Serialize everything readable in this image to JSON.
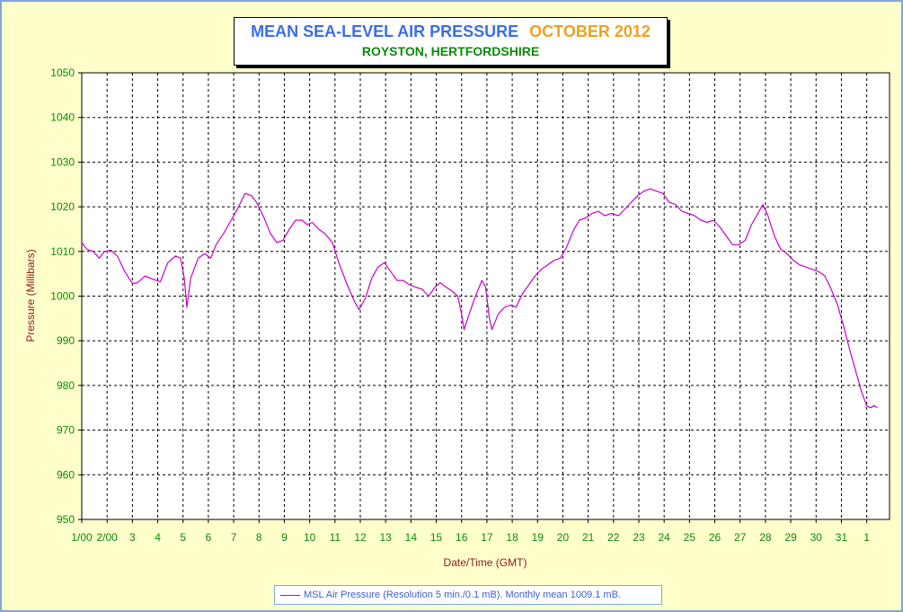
{
  "title": {
    "main": "MEAN SEA-LEVEL AIR PRESSURE",
    "date": "OCTOBER 2012",
    "location": "ROYSTON, HERTFORDSHIRE"
  },
  "legend": {
    "text": "MSL Air Pressure (Resolution 5 min./0.1 mB). Monthly mean 1009.1 mB."
  },
  "colors": {
    "background": "#ffffcc",
    "plot_background": "#ffffff",
    "line": "#cc00cc",
    "tick_labels": "#0a8a0a",
    "axis_titles": "#8b1a1a",
    "title_main": "#3a6ee8",
    "title_date": "#f0a020"
  },
  "chart_data": {
    "type": "line",
    "xlabel": "Date/Time (GMT)",
    "ylabel": "Pressure (Millibars)",
    "ylim": [
      950,
      1050
    ],
    "yticks": [
      950,
      960,
      970,
      980,
      990,
      1000,
      1010,
      1020,
      1030,
      1040,
      1050
    ],
    "xlim_days": [
      1,
      32.9
    ],
    "xticks": [
      {
        "day": 1,
        "label": "1/00"
      },
      {
        "day": 2,
        "label": "2/00"
      },
      {
        "day": 3,
        "label": "3"
      },
      {
        "day": 4,
        "label": "4"
      },
      {
        "day": 5,
        "label": "5"
      },
      {
        "day": 6,
        "label": "6"
      },
      {
        "day": 7,
        "label": "7"
      },
      {
        "day": 8,
        "label": "8"
      },
      {
        "day": 9,
        "label": "9"
      },
      {
        "day": 10,
        "label": "10"
      },
      {
        "day": 11,
        "label": "11"
      },
      {
        "day": 12,
        "label": "12"
      },
      {
        "day": 13,
        "label": "13"
      },
      {
        "day": 14,
        "label": "14"
      },
      {
        "day": 15,
        "label": "15"
      },
      {
        "day": 16,
        "label": "16"
      },
      {
        "day": 17,
        "label": "17"
      },
      {
        "day": 18,
        "label": "18"
      },
      {
        "day": 19,
        "label": "19"
      },
      {
        "day": 20,
        "label": "20"
      },
      {
        "day": 21,
        "label": "21"
      },
      {
        "day": 22,
        "label": "22"
      },
      {
        "day": 23,
        "label": "23"
      },
      {
        "day": 24,
        "label": "24"
      },
      {
        "day": 25,
        "label": "25"
      },
      {
        "day": 26,
        "label": "26"
      },
      {
        "day": 27,
        "label": "27"
      },
      {
        "day": 28,
        "label": "28"
      },
      {
        "day": 29,
        "label": "29"
      },
      {
        "day": 30,
        "label": "30"
      },
      {
        "day": 31,
        "label": "31"
      },
      {
        "day": 32,
        "label": "1"
      }
    ],
    "grid": true,
    "legend_position": "bottom",
    "series": [
      {
        "name": "MSL Air Pressure (Resolution 5 min./0.1 mB). Monthly mean 1009.1 mB.",
        "points": [
          [
            1.0,
            1012
          ],
          [
            1.2,
            1010.5
          ],
          [
            1.45,
            1010
          ],
          [
            1.7,
            1008.5
          ],
          [
            1.9,
            1010
          ],
          [
            2.15,
            1010.3
          ],
          [
            2.4,
            1009
          ],
          [
            2.7,
            1005.5
          ],
          [
            3.0,
            1002.8
          ],
          [
            3.2,
            1003
          ],
          [
            3.5,
            1004.5
          ],
          [
            3.8,
            1003.8
          ],
          [
            4.1,
            1003.2
          ],
          [
            4.4,
            1007.5
          ],
          [
            4.7,
            1009
          ],
          [
            4.9,
            1008.5
          ],
          [
            5.05,
            1004
          ],
          [
            5.15,
            997.5
          ],
          [
            5.3,
            1004
          ],
          [
            5.6,
            1008.5
          ],
          [
            5.85,
            1009.5
          ],
          [
            6.1,
            1008.5
          ],
          [
            6.3,
            1011.5
          ],
          [
            6.6,
            1014
          ],
          [
            6.9,
            1017
          ],
          [
            7.15,
            1019.5
          ],
          [
            7.45,
            1023
          ],
          [
            7.7,
            1022.5
          ],
          [
            7.9,
            1021
          ],
          [
            8.2,
            1017.5
          ],
          [
            8.45,
            1014
          ],
          [
            8.7,
            1012
          ],
          [
            8.95,
            1012.5
          ],
          [
            9.2,
            1015
          ],
          [
            9.45,
            1017
          ],
          [
            9.7,
            1017
          ],
          [
            9.9,
            1016
          ],
          [
            10.1,
            1016.5
          ],
          [
            10.35,
            1015
          ],
          [
            10.6,
            1014
          ],
          [
            10.9,
            1012
          ],
          [
            11.15,
            1007.5
          ],
          [
            11.45,
            1003
          ],
          [
            11.75,
            999
          ],
          [
            11.95,
            997
          ],
          [
            12.2,
            999.5
          ],
          [
            12.45,
            1004
          ],
          [
            12.7,
            1006.5
          ],
          [
            12.95,
            1007.5
          ],
          [
            13.2,
            1005.5
          ],
          [
            13.45,
            1003.5
          ],
          [
            13.7,
            1003.5
          ],
          [
            13.95,
            1002.5
          ],
          [
            14.2,
            1002
          ],
          [
            14.45,
            1001.5
          ],
          [
            14.7,
            1000
          ],
          [
            14.95,
            1002
          ],
          [
            15.15,
            1003
          ],
          [
            15.4,
            1002
          ],
          [
            15.65,
            1001
          ],
          [
            15.85,
            1000
          ],
          [
            16.0,
            996
          ],
          [
            16.1,
            992.5
          ],
          [
            16.3,
            996
          ],
          [
            16.55,
            1000
          ],
          [
            16.8,
            1003.5
          ],
          [
            16.95,
            1002
          ],
          [
            17.1,
            995
          ],
          [
            17.2,
            992.5
          ],
          [
            17.45,
            996
          ],
          [
            17.7,
            997.5
          ],
          [
            17.95,
            998
          ],
          [
            18.15,
            997.5
          ],
          [
            18.4,
            1000.5
          ],
          [
            18.65,
            1002.5
          ],
          [
            18.9,
            1004.5
          ],
          [
            19.15,
            1006
          ],
          [
            19.4,
            1007
          ],
          [
            19.65,
            1008
          ],
          [
            19.9,
            1008.5
          ],
          [
            20.15,
            1011
          ],
          [
            20.4,
            1014.5
          ],
          [
            20.65,
            1017
          ],
          [
            20.9,
            1017.5
          ],
          [
            21.15,
            1018.5
          ],
          [
            21.4,
            1019
          ],
          [
            21.65,
            1018
          ],
          [
            21.9,
            1018.5
          ],
          [
            22.2,
            1018
          ],
          [
            22.45,
            1019.5
          ],
          [
            22.7,
            1021
          ],
          [
            22.95,
            1022.5
          ],
          [
            23.2,
            1023.5
          ],
          [
            23.45,
            1024
          ],
          [
            23.7,
            1023.5
          ],
          [
            23.95,
            1023
          ],
          [
            24.2,
            1021
          ],
          [
            24.45,
            1020.5
          ],
          [
            24.7,
            1019
          ],
          [
            24.95,
            1018.5
          ],
          [
            25.2,
            1018
          ],
          [
            25.45,
            1017
          ],
          [
            25.7,
            1016.5
          ],
          [
            25.95,
            1017
          ],
          [
            26.2,
            1015.5
          ],
          [
            26.45,
            1013.5
          ],
          [
            26.7,
            1011.5
          ],
          [
            26.95,
            1011.5
          ],
          [
            27.2,
            1012.5
          ],
          [
            27.45,
            1016
          ],
          [
            27.7,
            1018.5
          ],
          [
            27.9,
            1020.5
          ],
          [
            28.1,
            1018
          ],
          [
            28.35,
            1013.5
          ],
          [
            28.6,
            1010.5
          ],
          [
            28.85,
            1009.5
          ],
          [
            29.1,
            1008
          ],
          [
            29.35,
            1007
          ],
          [
            29.6,
            1006.5
          ],
          [
            29.85,
            1006
          ],
          [
            30.1,
            1005.5
          ],
          [
            30.35,
            1004.5
          ],
          [
            30.6,
            1001.5
          ],
          [
            30.85,
            998
          ],
          [
            31.1,
            993
          ],
          [
            31.35,
            987.5
          ],
          [
            31.6,
            982.5
          ],
          [
            31.8,
            978.5
          ],
          [
            32.0,
            975.5
          ],
          [
            32.15,
            975
          ],
          [
            32.3,
            975.5
          ],
          [
            32.42,
            975
          ]
        ]
      }
    ]
  }
}
